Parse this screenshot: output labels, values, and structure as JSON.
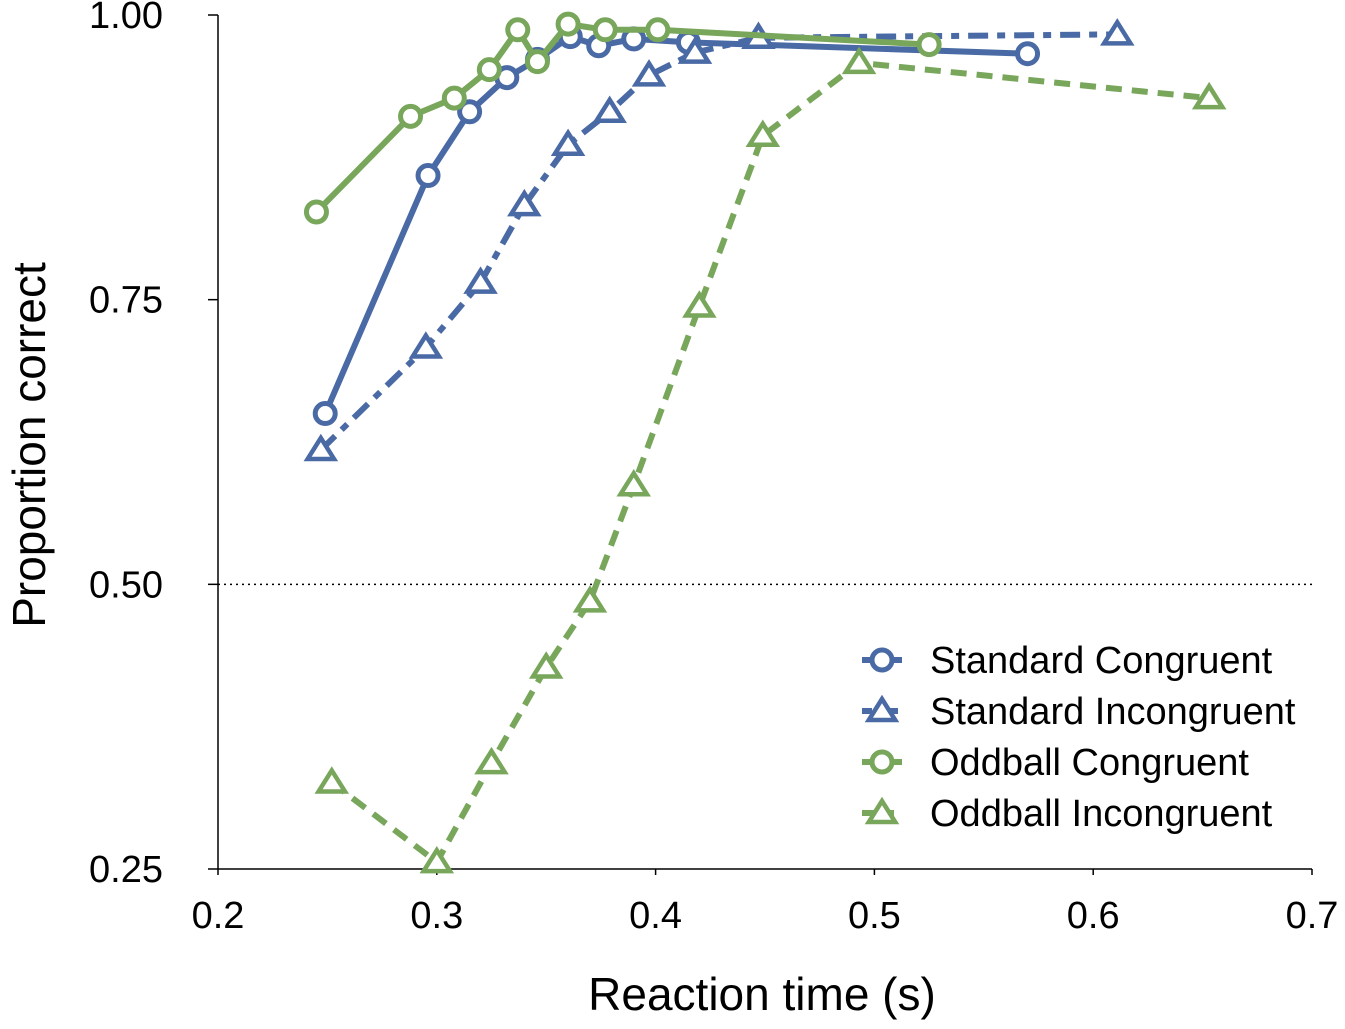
{
  "chart_data": {
    "type": "line",
    "title": "",
    "xlabel": "Reaction time (s)",
    "ylabel": "Proportion correct",
    "xlim": [
      0.2,
      0.7
    ],
    "ylim": [
      0.25,
      1.0
    ],
    "xticks": [
      0.2,
      0.3,
      0.4,
      0.5,
      0.6,
      0.7
    ],
    "xtick_labels": [
      "0.2",
      "0.3",
      "0.4",
      "0.5",
      "0.6",
      "0.7"
    ],
    "yticks": [
      0.25,
      0.5,
      0.75,
      1.0
    ],
    "ytick_labels": [
      "0.25",
      "0.50",
      "0.75",
      "1.00"
    ],
    "reference_line": {
      "y": 0.5,
      "style": "dotted"
    },
    "grid": false,
    "legend_position": "bottom-right",
    "colors": {
      "standard": "#4a6aa5",
      "oddball": "#78a65a"
    },
    "series": [
      {
        "name": "Standard Congruent",
        "color": "#4a6aa5",
        "marker": "circle",
        "dash": "solid",
        "x": [
          0.249,
          0.296,
          0.315,
          0.332,
          0.346,
          0.361,
          0.374,
          0.39,
          0.415,
          0.57
        ],
        "y": [
          0.65,
          0.859,
          0.915,
          0.945,
          0.961,
          0.981,
          0.973,
          0.979,
          0.976,
          0.966
        ]
      },
      {
        "name": "Standard Incongruent",
        "color": "#4a6aa5",
        "marker": "triangle",
        "dash": "dashdot",
        "x": [
          0.247,
          0.295,
          0.32,
          0.34,
          0.36,
          0.379,
          0.397,
          0.418,
          0.447,
          0.611
        ],
        "y": [
          0.618,
          0.708,
          0.765,
          0.833,
          0.886,
          0.915,
          0.947,
          0.967,
          0.98,
          0.983
        ]
      },
      {
        "name": "Oddball Congruent",
        "color": "#78a65a",
        "marker": "circle",
        "dash": "solid",
        "x": [
          0.245,
          0.288,
          0.308,
          0.324,
          0.337,
          0.346,
          0.36,
          0.377,
          0.401,
          0.525
        ],
        "y": [
          0.827,
          0.911,
          0.927,
          0.952,
          0.987,
          0.959,
          0.992,
          0.987,
          0.987,
          0.974
        ]
      },
      {
        "name": "Oddball Incongruent",
        "color": "#78a65a",
        "marker": "triangle",
        "dash": "dashed",
        "x": [
          0.252,
          0.3,
          0.325,
          0.35,
          0.37,
          0.39,
          0.42,
          0.449,
          0.493,
          0.653
        ],
        "y": [
          0.326,
          0.256,
          0.343,
          0.427,
          0.485,
          0.587,
          0.744,
          0.894,
          0.958,
          0.927
        ]
      }
    ]
  }
}
